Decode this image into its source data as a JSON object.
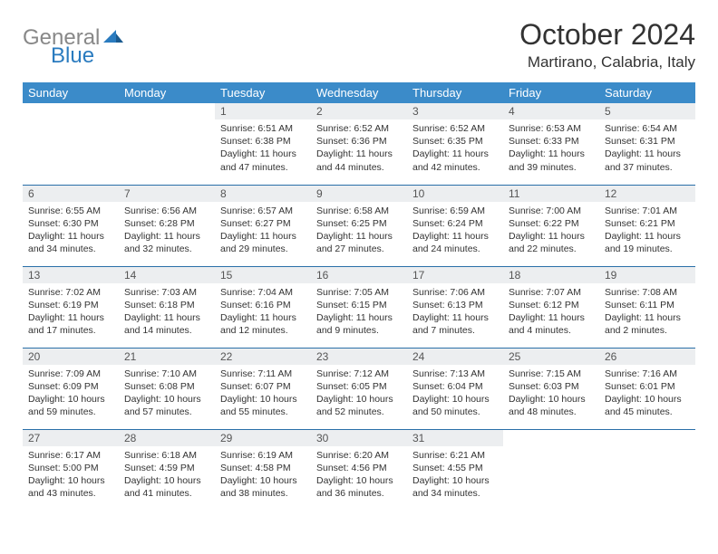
{
  "logo": {
    "part1": "General",
    "part2": "Blue"
  },
  "title": "October 2024",
  "location": "Martirano, Calabria, Italy",
  "colors": {
    "header_bg": "#3b8bc9",
    "header_text": "#ffffff",
    "daynum_bg": "#eceef0",
    "border": "#2a6fa8",
    "logo_gray": "#888888",
    "logo_blue": "#2a7bbf"
  },
  "weekdays": [
    "Sunday",
    "Monday",
    "Tuesday",
    "Wednesday",
    "Thursday",
    "Friday",
    "Saturday"
  ],
  "weeks": [
    [
      null,
      null,
      {
        "n": "1",
        "sr": "Sunrise: 6:51 AM",
        "ss": "Sunset: 6:38 PM",
        "dl": "Daylight: 11 hours and 47 minutes."
      },
      {
        "n": "2",
        "sr": "Sunrise: 6:52 AM",
        "ss": "Sunset: 6:36 PM",
        "dl": "Daylight: 11 hours and 44 minutes."
      },
      {
        "n": "3",
        "sr": "Sunrise: 6:52 AM",
        "ss": "Sunset: 6:35 PM",
        "dl": "Daylight: 11 hours and 42 minutes."
      },
      {
        "n": "4",
        "sr": "Sunrise: 6:53 AM",
        "ss": "Sunset: 6:33 PM",
        "dl": "Daylight: 11 hours and 39 minutes."
      },
      {
        "n": "5",
        "sr": "Sunrise: 6:54 AM",
        "ss": "Sunset: 6:31 PM",
        "dl": "Daylight: 11 hours and 37 minutes."
      }
    ],
    [
      {
        "n": "6",
        "sr": "Sunrise: 6:55 AM",
        "ss": "Sunset: 6:30 PM",
        "dl": "Daylight: 11 hours and 34 minutes."
      },
      {
        "n": "7",
        "sr": "Sunrise: 6:56 AM",
        "ss": "Sunset: 6:28 PM",
        "dl": "Daylight: 11 hours and 32 minutes."
      },
      {
        "n": "8",
        "sr": "Sunrise: 6:57 AM",
        "ss": "Sunset: 6:27 PM",
        "dl": "Daylight: 11 hours and 29 minutes."
      },
      {
        "n": "9",
        "sr": "Sunrise: 6:58 AM",
        "ss": "Sunset: 6:25 PM",
        "dl": "Daylight: 11 hours and 27 minutes."
      },
      {
        "n": "10",
        "sr": "Sunrise: 6:59 AM",
        "ss": "Sunset: 6:24 PM",
        "dl": "Daylight: 11 hours and 24 minutes."
      },
      {
        "n": "11",
        "sr": "Sunrise: 7:00 AM",
        "ss": "Sunset: 6:22 PM",
        "dl": "Daylight: 11 hours and 22 minutes."
      },
      {
        "n": "12",
        "sr": "Sunrise: 7:01 AM",
        "ss": "Sunset: 6:21 PM",
        "dl": "Daylight: 11 hours and 19 minutes."
      }
    ],
    [
      {
        "n": "13",
        "sr": "Sunrise: 7:02 AM",
        "ss": "Sunset: 6:19 PM",
        "dl": "Daylight: 11 hours and 17 minutes."
      },
      {
        "n": "14",
        "sr": "Sunrise: 7:03 AM",
        "ss": "Sunset: 6:18 PM",
        "dl": "Daylight: 11 hours and 14 minutes."
      },
      {
        "n": "15",
        "sr": "Sunrise: 7:04 AM",
        "ss": "Sunset: 6:16 PM",
        "dl": "Daylight: 11 hours and 12 minutes."
      },
      {
        "n": "16",
        "sr": "Sunrise: 7:05 AM",
        "ss": "Sunset: 6:15 PM",
        "dl": "Daylight: 11 hours and 9 minutes."
      },
      {
        "n": "17",
        "sr": "Sunrise: 7:06 AM",
        "ss": "Sunset: 6:13 PM",
        "dl": "Daylight: 11 hours and 7 minutes."
      },
      {
        "n": "18",
        "sr": "Sunrise: 7:07 AM",
        "ss": "Sunset: 6:12 PM",
        "dl": "Daylight: 11 hours and 4 minutes."
      },
      {
        "n": "19",
        "sr": "Sunrise: 7:08 AM",
        "ss": "Sunset: 6:11 PM",
        "dl": "Daylight: 11 hours and 2 minutes."
      }
    ],
    [
      {
        "n": "20",
        "sr": "Sunrise: 7:09 AM",
        "ss": "Sunset: 6:09 PM",
        "dl": "Daylight: 10 hours and 59 minutes."
      },
      {
        "n": "21",
        "sr": "Sunrise: 7:10 AM",
        "ss": "Sunset: 6:08 PM",
        "dl": "Daylight: 10 hours and 57 minutes."
      },
      {
        "n": "22",
        "sr": "Sunrise: 7:11 AM",
        "ss": "Sunset: 6:07 PM",
        "dl": "Daylight: 10 hours and 55 minutes."
      },
      {
        "n": "23",
        "sr": "Sunrise: 7:12 AM",
        "ss": "Sunset: 6:05 PM",
        "dl": "Daylight: 10 hours and 52 minutes."
      },
      {
        "n": "24",
        "sr": "Sunrise: 7:13 AM",
        "ss": "Sunset: 6:04 PM",
        "dl": "Daylight: 10 hours and 50 minutes."
      },
      {
        "n": "25",
        "sr": "Sunrise: 7:15 AM",
        "ss": "Sunset: 6:03 PM",
        "dl": "Daylight: 10 hours and 48 minutes."
      },
      {
        "n": "26",
        "sr": "Sunrise: 7:16 AM",
        "ss": "Sunset: 6:01 PM",
        "dl": "Daylight: 10 hours and 45 minutes."
      }
    ],
    [
      {
        "n": "27",
        "sr": "Sunrise: 6:17 AM",
        "ss": "Sunset: 5:00 PM",
        "dl": "Daylight: 10 hours and 43 minutes."
      },
      {
        "n": "28",
        "sr": "Sunrise: 6:18 AM",
        "ss": "Sunset: 4:59 PM",
        "dl": "Daylight: 10 hours and 41 minutes."
      },
      {
        "n": "29",
        "sr": "Sunrise: 6:19 AM",
        "ss": "Sunset: 4:58 PM",
        "dl": "Daylight: 10 hours and 38 minutes."
      },
      {
        "n": "30",
        "sr": "Sunrise: 6:20 AM",
        "ss": "Sunset: 4:56 PM",
        "dl": "Daylight: 10 hours and 36 minutes."
      },
      {
        "n": "31",
        "sr": "Sunrise: 6:21 AM",
        "ss": "Sunset: 4:55 PM",
        "dl": "Daylight: 10 hours and 34 minutes."
      },
      null,
      null
    ]
  ]
}
